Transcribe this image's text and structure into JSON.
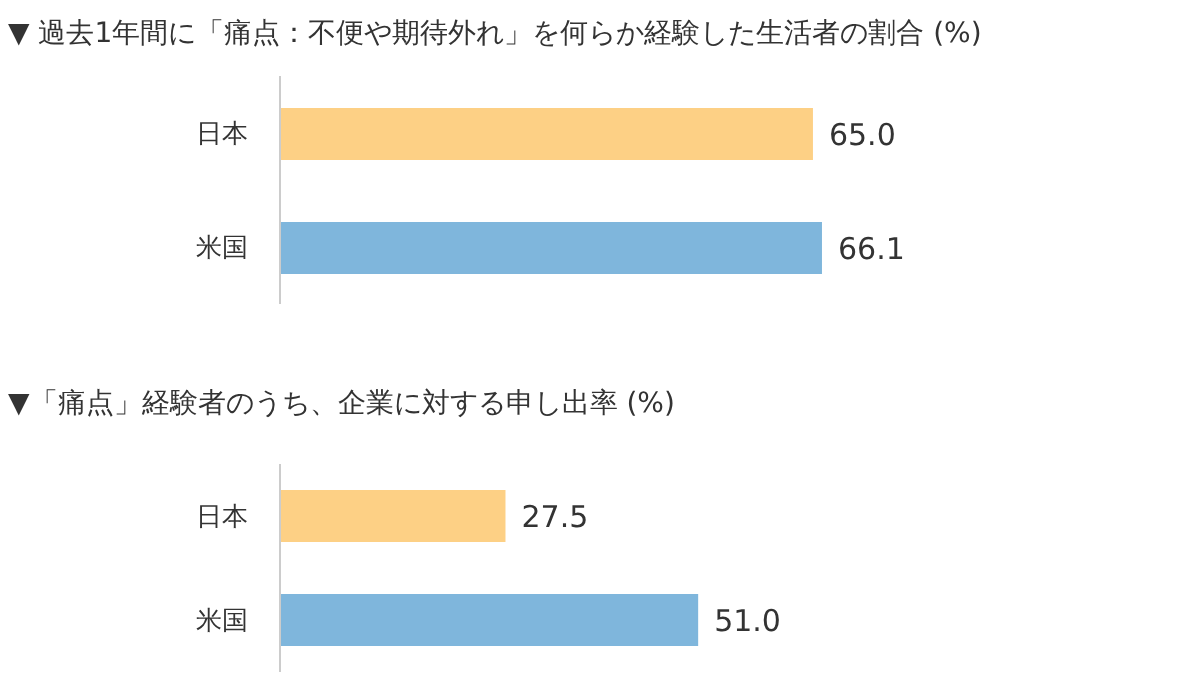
{
  "chart_data": [
    {
      "type": "bar",
      "orientation": "horizontal",
      "title": "▼ 過去1年間に「痛点：不便や期待外れ」を何らか経験した生活者の割合 (%)",
      "categories": [
        "日本",
        "米国"
      ],
      "values": [
        65.0,
        66.1
      ],
      "colors": [
        "#fdd085",
        "#7fb6dc"
      ],
      "value_labels": [
        "65.0",
        "66.1"
      ],
      "grid": false,
      "legend": false
    },
    {
      "type": "bar",
      "orientation": "horizontal",
      "title": "▼「痛点」経験者のうち、企業に対する申し出率 (%)",
      "categories": [
        "日本",
        "米国"
      ],
      "values": [
        27.5,
        51.0
      ],
      "colors": [
        "#fdd085",
        "#7fb6dc"
      ],
      "value_labels": [
        "27.5",
        "51.0"
      ],
      "grid": false,
      "legend": false
    }
  ]
}
